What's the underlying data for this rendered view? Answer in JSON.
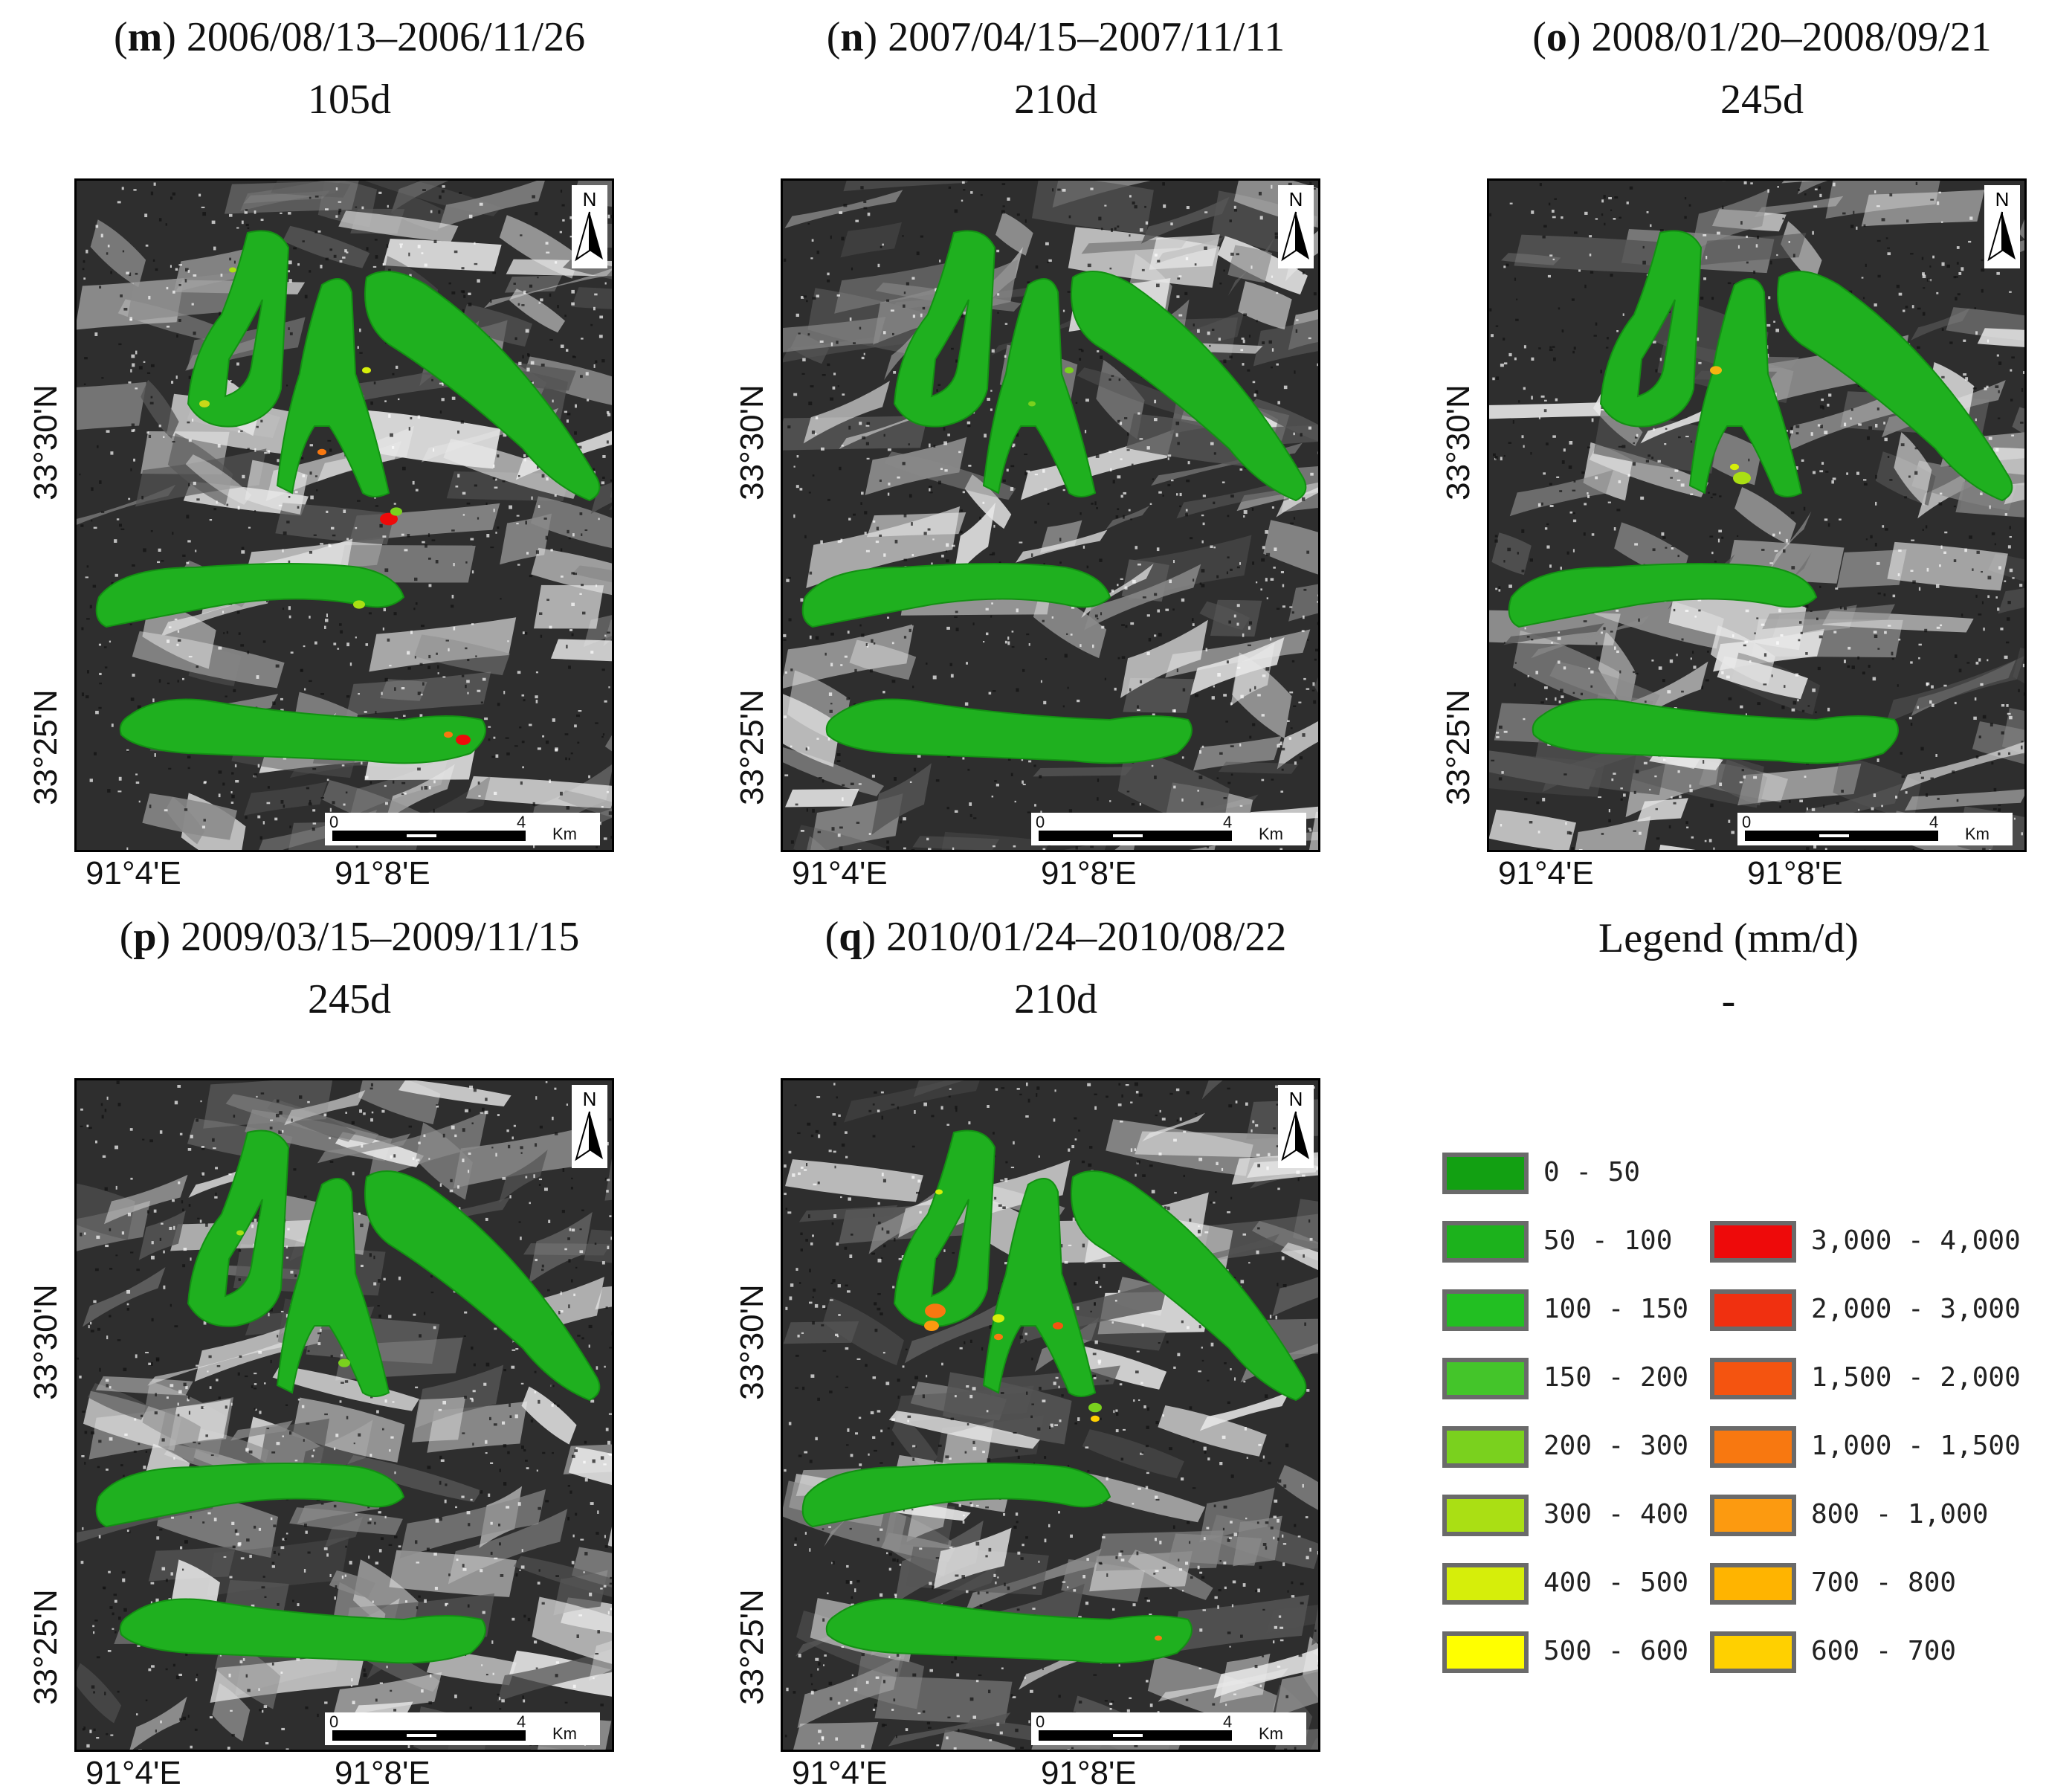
{
  "panels": [
    {
      "letter": "m",
      "dates": "2006/08/13–2006/11/26",
      "duration": "105d",
      "variant": "m"
    },
    {
      "letter": "n",
      "dates": "2007/04/15–2007/11/11",
      "duration": "210d",
      "variant": "n"
    },
    {
      "letter": "o",
      "dates": "2008/01/20–2008/09/21",
      "duration": "245d",
      "variant": "o"
    },
    {
      "letter": "p",
      "dates": "2009/03/15–2009/11/15",
      "duration": "245d",
      "variant": "p"
    },
    {
      "letter": "q",
      "dates": "2010/01/24–2010/08/22",
      "duration": "210d",
      "variant": "q"
    }
  ],
  "axis": {
    "lat_top": "33°30'N",
    "lat_bottom": "33°25'N",
    "lon_left": "91°4'E",
    "lon_right": "91°8'E",
    "north": "N",
    "scale_start": "0",
    "scale_end": "4",
    "scale_unit": "Km"
  },
  "legend": {
    "title": "Legend (mm/d)",
    "subtitle": "-",
    "left_column": [
      {
        "label": "0 - 50",
        "color": "#12a012"
      },
      {
        "label": "50 - 100",
        "color": "#1cb21c"
      },
      {
        "label": "100 - 150",
        "color": "#22bf22"
      },
      {
        "label": "150 - 200",
        "color": "#44c52a"
      },
      {
        "label": "200 - 300",
        "color": "#7ad11e"
      },
      {
        "label": "300 - 400",
        "color": "#aadf14"
      },
      {
        "label": "400 - 500",
        "color": "#d6ee0a"
      },
      {
        "label": "500 - 600",
        "color": "#ffff00"
      }
    ],
    "right_column": [
      {
        "label": "3,000 - 4,000",
        "color": "#ee0a0a"
      },
      {
        "label": "2,000 - 3,000",
        "color": "#f03010"
      },
      {
        "label": "1,500 - 2,000",
        "color": "#f45410"
      },
      {
        "label": "1,000 - 1,500",
        "color": "#f87810"
      },
      {
        "label": "800 - 1,000",
        "color": "#fc9a10"
      },
      {
        "label": "700 - 800",
        "color": "#ffb400"
      },
      {
        "label": "600 - 700",
        "color": "#ffd000"
      }
    ]
  }
}
